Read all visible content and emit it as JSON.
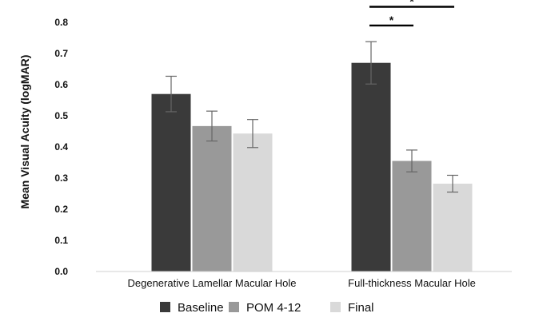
{
  "chart_data": {
    "type": "bar",
    "title": "",
    "xlabel": "",
    "ylabel": "Mean Visual Acuity (logMAR)",
    "ylim": [
      0,
      0.8
    ],
    "yticks": [
      "0.0",
      "0.1",
      "0.2",
      "0.3",
      "0.4",
      "0.5",
      "0.6",
      "0.7",
      "0.8"
    ],
    "grid": false,
    "legend_position": "bottom",
    "categories": [
      "Degenerative Lamellar Macular Hole",
      "Full-thickness Macular Hole"
    ],
    "series": [
      {
        "name": "Baseline",
        "color": "#3a3a3a",
        "values": [
          0.57,
          0.67
        ],
        "error": [
          0.057,
          0.068
        ]
      },
      {
        "name": "POM 4-12",
        "color": "#999999",
        "values": [
          0.467,
          0.355
        ],
        "error": [
          0.048,
          0.035
        ]
      },
      {
        "name": "Final",
        "color": "#d9d9d9",
        "values": [
          0.443,
          0.282
        ],
        "error": [
          0.045,
          0.027
        ]
      }
    ],
    "significance": [
      {
        "category": "Full-thickness Macular Hole",
        "from": "Baseline",
        "to": "POM 4-12",
        "label": "*",
        "level": 0.79
      },
      {
        "category": "Full-thickness Macular Hole",
        "from": "Baseline",
        "to": "Final",
        "label": "*",
        "level": 0.85
      }
    ]
  }
}
